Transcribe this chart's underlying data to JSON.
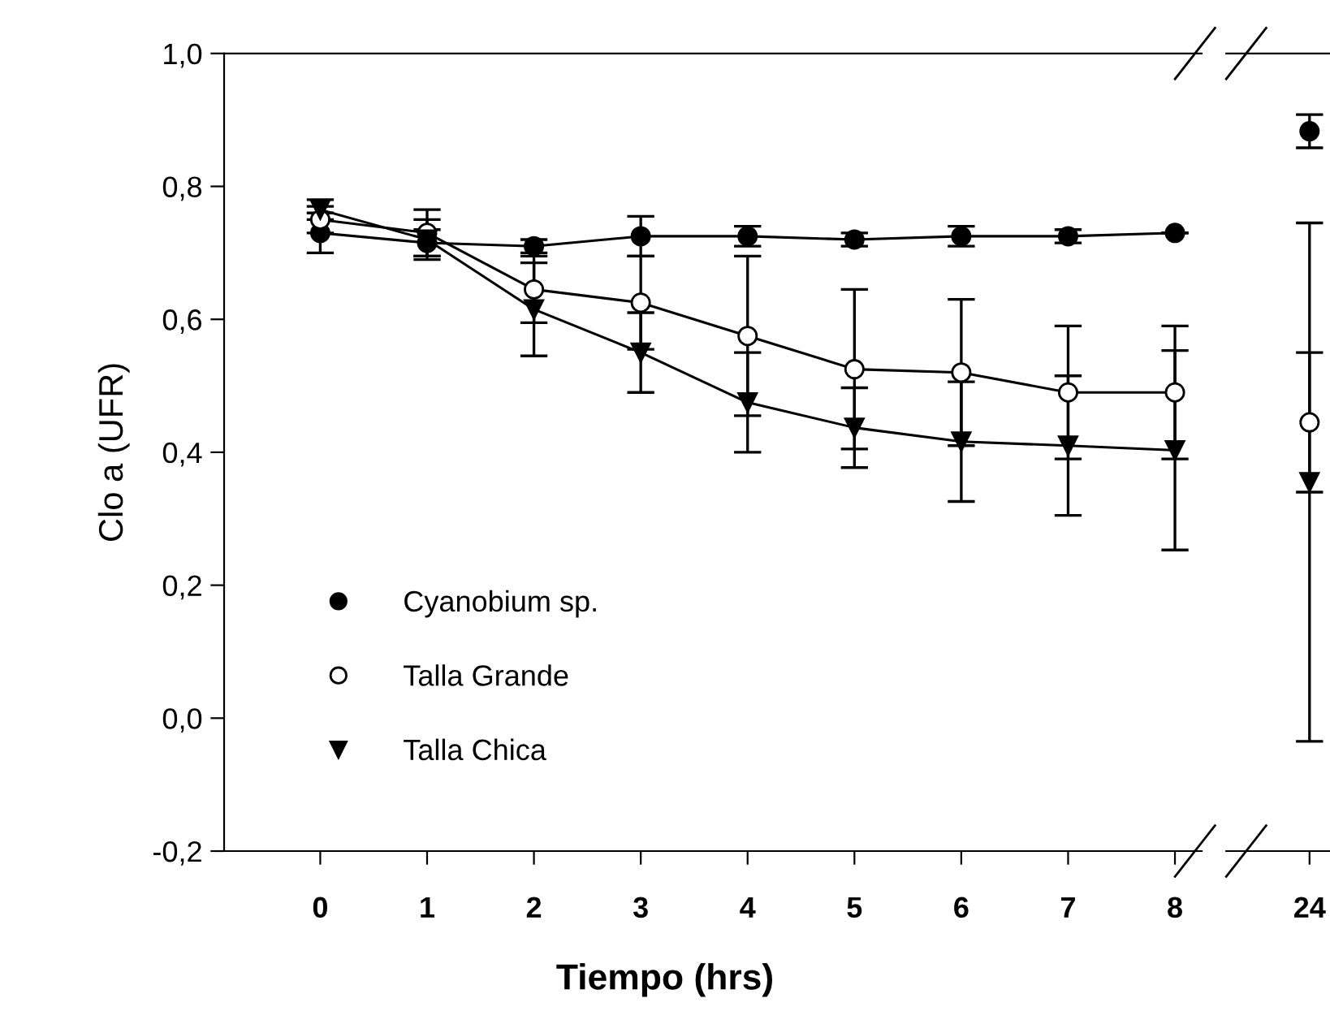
{
  "chart_data": [
    {
      "type": "line",
      "xlabel": "Tiempo (hrs)",
      "ylabel": "Clo a (UFR)",
      "categories": [
        "0",
        "1",
        "2",
        "3",
        "4",
        "5",
        "6",
        "7",
        "8"
      ],
      "ylim": [
        -0.2,
        1.0
      ],
      "yticks": [
        {
          "value": -0.2,
          "label": "-0,2"
        },
        {
          "value": 0.0,
          "label": "0,0"
        },
        {
          "value": 0.2,
          "label": "0,2"
        },
        {
          "value": 0.4,
          "label": "0,4"
        },
        {
          "value": 0.6,
          "label": "0,6"
        },
        {
          "value": 0.8,
          "label": "0,8"
        },
        {
          "value": 1.0,
          "label": "1,0"
        }
      ],
      "grid": false,
      "legend": "bottom left",
      "series": [
        {
          "name": "Cyanobium sp.",
          "color": "#000000",
          "marker": "circle",
          "values": [
            0.73,
            0.715,
            0.71,
            0.725,
            0.725,
            0.72,
            0.725,
            0.725,
            0.73
          ],
          "errors": [
            0.03,
            0.02,
            0.01,
            0.03,
            0.015,
            0.01,
            0.015,
            0.01,
            null
          ]
        },
        {
          "name": "Talla Grande",
          "color": "#ffffff",
          "marker": "circle",
          "values": [
            0.75,
            0.73,
            0.645,
            0.625,
            0.575,
            0.525,
            0.52,
            0.49,
            0.49
          ],
          "errors": [
            0.02,
            0.035,
            0.05,
            0.07,
            0.12,
            0.12,
            0.11,
            0.1,
            0.1
          ]
        },
        {
          "name": "Talla Chica",
          "color": "#000000",
          "marker": "triangle",
          "values": [
            0.765,
            0.72,
            0.615,
            0.55,
            0.475,
            0.437,
            0.416,
            0.41,
            0.403
          ],
          "errors": [
            0.015,
            0.03,
            0.07,
            0.06,
            0.075,
            0.06,
            0.09,
            0.105,
            0.15
          ]
        }
      ]
    },
    {
      "type": "line",
      "categories": [
        "24"
      ],
      "ylim": [
        -0.2,
        1.0
      ],
      "tick_labels": "x",
      "grid": false,
      "series": [
        {
          "color": "#000000",
          "marker": "circle",
          "values": [
            0.883
          ],
          "errors": [
            0.025
          ]
        },
        {
          "color": "#ffffff",
          "marker": "circle",
          "values": [
            0.445
          ],
          "errors": [
            0.105
          ]
        },
        {
          "color": "#000000",
          "marker": "triangle",
          "values": [
            0.355
          ],
          "errors": [
            0.39
          ]
        }
      ]
    }
  ]
}
